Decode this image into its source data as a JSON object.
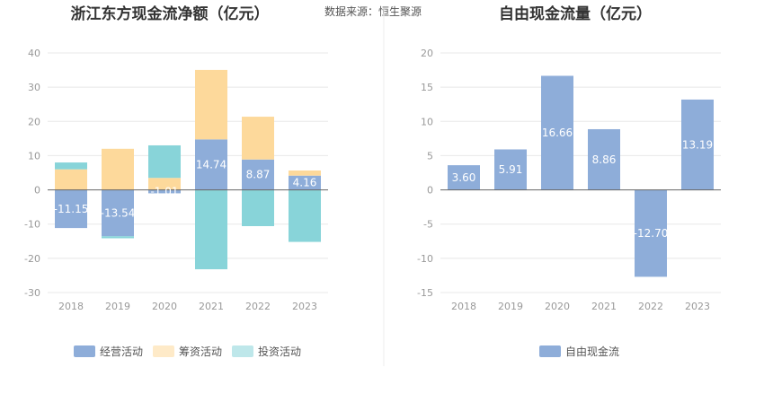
{
  "header": {
    "source_text": "数据来源：恒生聚源"
  },
  "chart_data": [
    {
      "type": "bar",
      "stacked": true,
      "title": "浙江东方现金流净额（亿元）",
      "categories": [
        "2018",
        "2019",
        "2020",
        "2021",
        "2022",
        "2023"
      ],
      "series": [
        {
          "name": "经营活动",
          "color": "#8eadd9",
          "values": [
            -11.15,
            -13.54,
            -1.01,
            14.74,
            8.87,
            4.16
          ],
          "labels_shown": true
        },
        {
          "name": "筹资活动",
          "color": "#fdd99b",
          "values": [
            6.0,
            12.0,
            3.5,
            20.3,
            12.5,
            1.5
          ],
          "labels_shown": false
        },
        {
          "name": "投资活动",
          "color": "#88d4d9",
          "values": [
            2.0,
            -0.6,
            9.5,
            -23.2,
            -10.6,
            -15.2
          ],
          "labels_shown": false
        }
      ],
      "yticks": [
        40,
        30,
        20,
        10,
        0,
        -10,
        -20,
        -30
      ],
      "ylim": [
        -30,
        40
      ],
      "grid": true,
      "legend_position": "bottom"
    },
    {
      "type": "bar",
      "title": "自由现金流量（亿元）",
      "categories": [
        "2018",
        "2019",
        "2020",
        "2021",
        "2022",
        "2023"
      ],
      "series": [
        {
          "name": "自由现金流",
          "color": "#8eadd9",
          "values": [
            3.6,
            5.91,
            16.66,
            8.86,
            -12.7,
            13.19
          ],
          "labels_shown": true
        }
      ],
      "yticks": [
        20,
        15,
        10,
        5,
        0,
        -5,
        -10,
        -15
      ],
      "ylim": [
        -15,
        20
      ],
      "grid": true,
      "legend_position": "bottom"
    }
  ]
}
